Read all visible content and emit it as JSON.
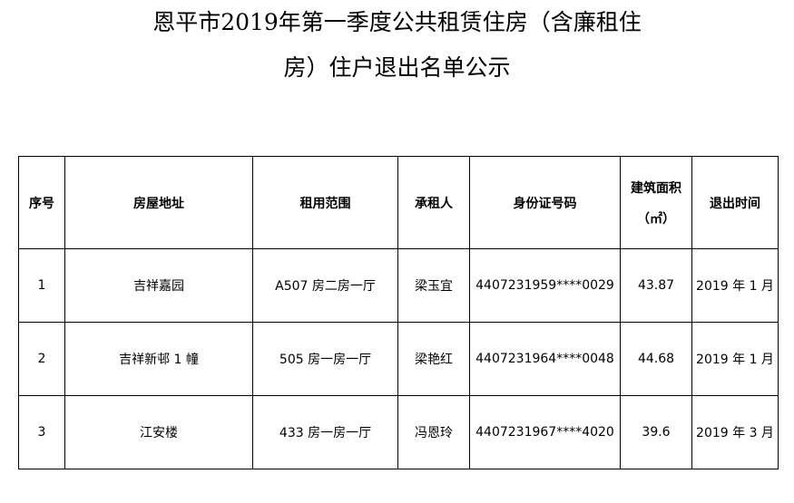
{
  "title": {
    "line1": "恩平市2019年第一季度公共租赁住房（含廉租住",
    "line2": "房）住户退出名单公示"
  },
  "table": {
    "headers": [
      "序号",
      "房屋地址",
      "租用范围",
      "承租人",
      "身份证号码",
      "建筑面积",
      "退出时间"
    ],
    "area_unit": "（㎡）",
    "rows": [
      [
        "1",
        "吉祥嘉园",
        "A507 房二房一厅",
        "梁玉宜",
        "4407231959****0029",
        "43.87",
        "2019 年 1 月"
      ],
      [
        "2",
        "吉祥新邨 1 幢",
        "505 房一房一厅",
        "梁艳红",
        "4407231964****0048",
        "44.68",
        "2019 年 1 月"
      ],
      [
        "3",
        "江安楼",
        "433 房一房一厅",
        "冯恩玲",
        "4407231967****4020",
        "39.6",
        "2019 年 3 月"
      ]
    ]
  }
}
